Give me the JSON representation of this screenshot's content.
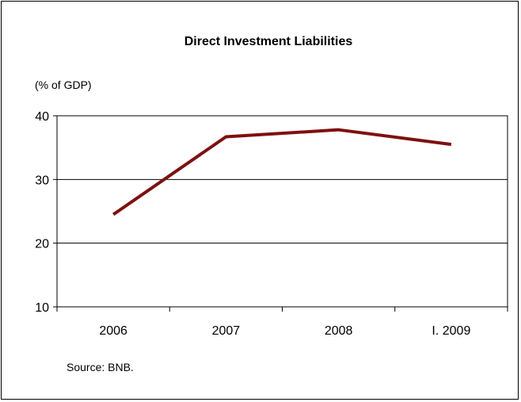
{
  "chart_data": {
    "type": "line",
    "title": "Direct Investment Liabilities",
    "ylabel": "(% of GDP)",
    "xlabel": "",
    "categories": [
      "2006",
      "2007",
      "2008",
      "I. 2009"
    ],
    "series": [
      {
        "values": [
          24.5,
          36.7,
          37.8,
          35.5
        ],
        "color": "#7f0f0f"
      }
    ],
    "ylim": [
      10,
      40
    ],
    "yticks": [
      10,
      20,
      30,
      40
    ],
    "grid": true,
    "legend": "none"
  },
  "source": "Source: BNB."
}
